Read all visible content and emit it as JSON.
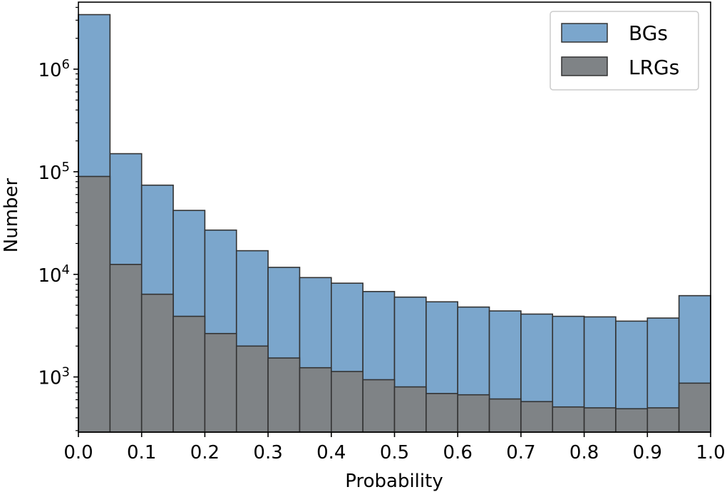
{
  "chart_data": {
    "type": "bar",
    "title": "",
    "xlabel": "Probability",
    "ylabel": "Number",
    "yscale": "log",
    "xlim": [
      0.0,
      1.0
    ],
    "ylim": [
      290,
      4500000
    ],
    "bin_edges": [
      0.0,
      0.05,
      0.1,
      0.15,
      0.2,
      0.25,
      0.3,
      0.35,
      0.4,
      0.45,
      0.5,
      0.55,
      0.6,
      0.65,
      0.7,
      0.75,
      0.8,
      0.85,
      0.9,
      0.95,
      1.0
    ],
    "x_ticks": [
      {
        "value": 0.0,
        "label": "0.0"
      },
      {
        "value": 0.1,
        "label": "0.1"
      },
      {
        "value": 0.2,
        "label": "0.2"
      },
      {
        "value": 0.3,
        "label": "0.3"
      },
      {
        "value": 0.4,
        "label": "0.4"
      },
      {
        "value": 0.5,
        "label": "0.5"
      },
      {
        "value": 0.6,
        "label": "0.6"
      },
      {
        "value": 0.7,
        "label": "0.7"
      },
      {
        "value": 0.8,
        "label": "0.8"
      },
      {
        "value": 0.9,
        "label": "0.9"
      },
      {
        "value": 1.0,
        "label": "1.0"
      }
    ],
    "y_ticks": [
      {
        "value": 1000,
        "base": "10",
        "exp": "3"
      },
      {
        "value": 10000,
        "base": "10",
        "exp": "4"
      },
      {
        "value": 100000,
        "base": "10",
        "exp": "5"
      },
      {
        "value": 1000000,
        "base": "10",
        "exp": "6"
      }
    ],
    "legend_position": "top-right",
    "series": [
      {
        "name": "BGs",
        "color": "#7ba6cc",
        "values": [
          3400000,
          150000,
          74000,
          42000,
          27000,
          17000,
          11700,
          9300,
          8200,
          6800,
          6000,
          5400,
          4800,
          4400,
          4100,
          3900,
          3850,
          3500,
          3750,
          6200
        ]
      },
      {
        "name": "LRGs",
        "color": "#7f8386",
        "values": [
          90000,
          12500,
          6400,
          3900,
          2650,
          2000,
          1530,
          1230,
          1130,
          940,
          800,
          690,
          670,
          610,
          575,
          510,
          500,
          490,
          500,
          870
        ]
      }
    ]
  }
}
